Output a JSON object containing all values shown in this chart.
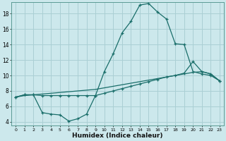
{
  "title": "",
  "xlabel": "Humidex (Indice chaleur)",
  "xlim": [
    0,
    23
  ],
  "ylim": [
    3.5,
    19.5
  ],
  "xticks": [
    0,
    1,
    2,
    3,
    4,
    5,
    6,
    7,
    8,
    9,
    10,
    11,
    12,
    13,
    14,
    15,
    16,
    17,
    18,
    19,
    20,
    21,
    22,
    23
  ],
  "yticks": [
    4,
    6,
    8,
    10,
    12,
    14,
    16,
    18
  ],
  "bg_color": "#cce8ec",
  "grid_color": "#aacfd4",
  "line_color": "#1a6e6a",
  "line1_x": [
    0,
    1,
    2,
    3,
    4,
    5,
    6,
    7,
    8,
    9,
    10,
    11,
    12,
    13,
    14,
    15,
    16,
    17,
    18,
    19,
    20,
    21,
    22,
    23
  ],
  "line1_y": [
    7.2,
    7.5,
    7.5,
    7.4,
    7.4,
    7.4,
    7.4,
    7.4,
    7.4,
    7.4,
    10.5,
    12.8,
    15.5,
    17.0,
    19.1,
    19.3,
    18.2,
    17.3,
    14.1,
    14.0,
    10.5,
    10.2,
    10.0,
    9.3
  ],
  "line2_x": [
    0,
    1,
    2,
    3,
    4,
    5,
    6,
    7,
    8,
    9,
    10,
    11,
    12,
    13,
    14,
    15,
    16,
    17,
    18,
    19,
    20,
    21,
    22,
    23
  ],
  "line2_y": [
    7.2,
    7.4,
    7.5,
    7.6,
    7.7,
    7.8,
    7.9,
    8.0,
    8.1,
    8.2,
    8.4,
    8.6,
    8.8,
    9.0,
    9.2,
    9.4,
    9.6,
    9.8,
    10.0,
    10.2,
    10.4,
    10.5,
    10.2,
    9.3
  ],
  "line3_x": [
    0,
    1,
    2,
    3,
    4,
    5,
    6,
    7,
    8,
    9,
    10,
    11,
    12,
    13,
    14,
    15,
    16,
    17,
    18,
    19,
    20,
    21,
    22,
    23
  ],
  "line3_y": [
    7.2,
    7.5,
    7.5,
    5.2,
    5.0,
    4.9,
    4.1,
    4.4,
    5.0,
    7.4,
    7.7,
    8.0,
    8.3,
    8.6,
    8.9,
    9.2,
    9.5,
    9.8,
    10.0,
    10.3,
    11.8,
    10.5,
    10.2,
    9.3
  ]
}
